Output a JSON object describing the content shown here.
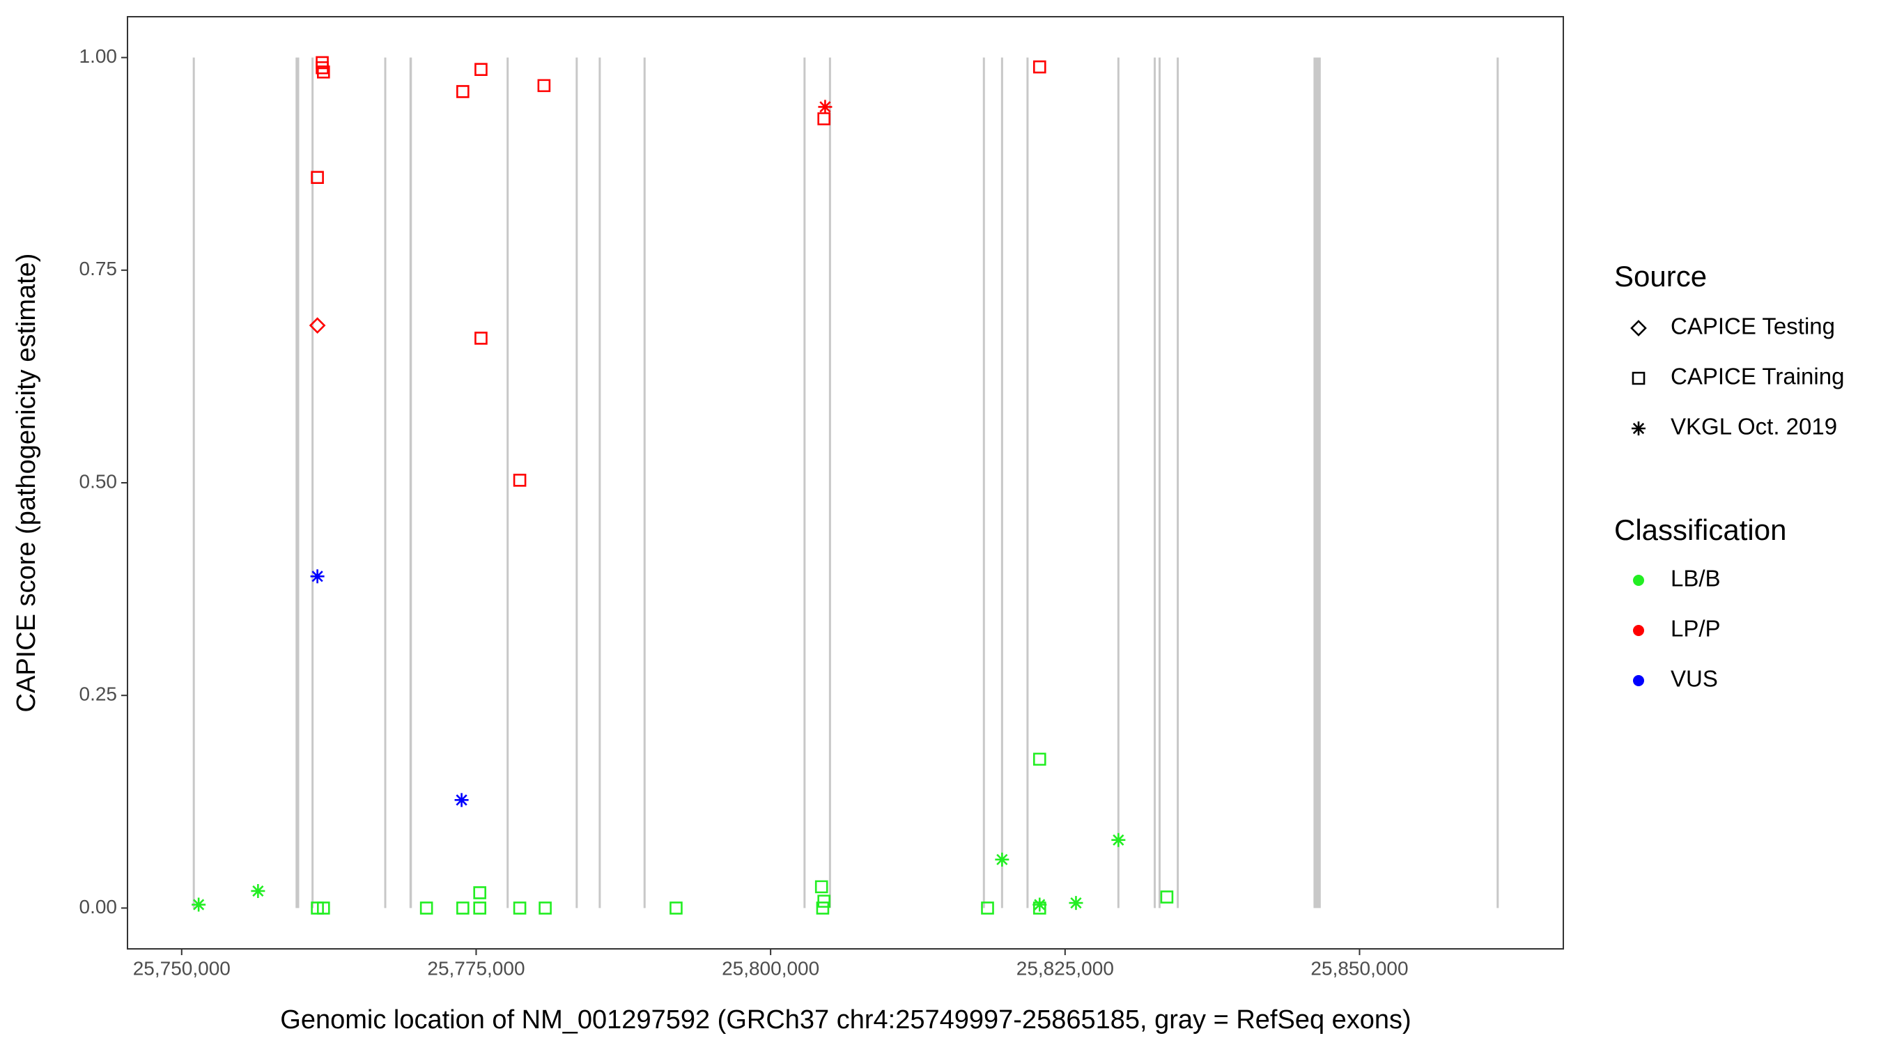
{
  "chart_data": {
    "type": "scatter",
    "x_label": "Genomic location of NM_001297592 (GRCh37 chr4:25749997-25865185, gray = RefSeq exons)",
    "y_label": "CAPICE score (pathogenicity estimate)",
    "xlim": [
      25745400,
      25867300
    ],
    "ylim": [
      -0.048,
      1.048
    ],
    "xticks": [
      {
        "value": 25750000,
        "label": "25,750,000"
      },
      {
        "value": 25775000,
        "label": "25,775,000"
      },
      {
        "value": 25800000,
        "label": "25,800,000"
      },
      {
        "value": 25825000,
        "label": "25,825,000"
      },
      {
        "value": 25850000,
        "label": "25,850,000"
      }
    ],
    "yticks": [
      {
        "value": 0,
        "label": "0.00"
      },
      {
        "value": 0.25,
        "label": "0.25"
      },
      {
        "value": 0.5,
        "label": "0.50"
      },
      {
        "value": 0.75,
        "label": "0.75"
      },
      {
        "value": 1,
        "label": "1.00"
      }
    ],
    "exon_color": "#c8c8c8",
    "exons": [
      [
        25751029,
        25751029
      ],
      [
        25759670,
        25759980
      ],
      [
        25761111,
        25761111
      ],
      [
        25767284,
        25767284
      ],
      [
        25769342,
        25769547
      ],
      [
        25777675,
        25777675
      ],
      [
        25783539,
        25783539
      ],
      [
        25785494,
        25785494
      ],
      [
        25789300,
        25789300
      ],
      [
        25802881,
        25802881
      ],
      [
        25805041,
        25805041
      ],
      [
        25818107,
        25818107
      ],
      [
        25819650,
        25819650
      ],
      [
        25821811,
        25821811
      ],
      [
        25829527,
        25829527
      ],
      [
        25832613,
        25832613
      ],
      [
        25833025,
        25833025
      ],
      [
        25834568,
        25834568
      ],
      [
        25846091,
        25846708
      ],
      [
        25861728,
        25861728
      ]
    ],
    "source_legend": {
      "title": "Source",
      "entries": [
        {
          "name": "CAPICE Testing",
          "shape": "diamond"
        },
        {
          "name": "CAPICE Training",
          "shape": "square"
        },
        {
          "name": "VKGL Oct. 2019",
          "shape": "asterisk"
        }
      ]
    },
    "class_legend": {
      "title": "Classification",
      "entries": [
        {
          "name": "LB/B",
          "color": "#22ee22"
        },
        {
          "name": "LP/P",
          "color": "#ff0000"
        },
        {
          "name": "VUS",
          "color": "#0000ff"
        }
      ]
    },
    "series": [
      {
        "source": "VKGL Oct. 2019",
        "classification": "LB/B",
        "x": [
          25751440,
          25756481,
          25819650,
          25822840,
          25825926,
          25829527
        ],
        "y": [
          0.004,
          0.02,
          0.057,
          0.004,
          0.006,
          0.08
        ]
      },
      {
        "source": "CAPICE Training",
        "classification": "LB/B",
        "x": [
          25761523,
          25762037,
          25770782,
          25773868,
          25775309,
          25775309,
          25778704,
          25780864,
          25791975,
          25804321,
          25804527,
          25804424,
          25818416,
          25822840,
          25822840,
          25833642
        ],
        "y": [
          0,
          0,
          0,
          0,
          0.018,
          0,
          0,
          0,
          0,
          0.025,
          0.008,
          0,
          0,
          0.175,
          0,
          0.013
        ]
      },
      {
        "source": "CAPICE Training",
        "classification": "LP/P",
        "x": [
          25761934,
          25761934,
          25762037,
          25761523,
          25773868,
          25775412,
          25775412,
          25780761,
          25778704,
          25804527,
          25822840
        ],
        "y": [
          0.994,
          0.988,
          0.983,
          0.859,
          0.96,
          0.986,
          0.67,
          0.967,
          0.503,
          0.928,
          0.989
        ]
      },
      {
        "source": "CAPICE Testing",
        "classification": "LP/P",
        "x": [
          25761523
        ],
        "y": [
          0.685
        ]
      },
      {
        "source": "VKGL Oct. 2019",
        "classification": "LP/P",
        "x": [
          25804630
        ],
        "y": [
          0.942
        ]
      },
      {
        "source": "VKGL Oct. 2019",
        "classification": "VUS",
        "x": [
          25761523,
          25773765
        ],
        "y": [
          0.39,
          0.127
        ]
      }
    ]
  }
}
